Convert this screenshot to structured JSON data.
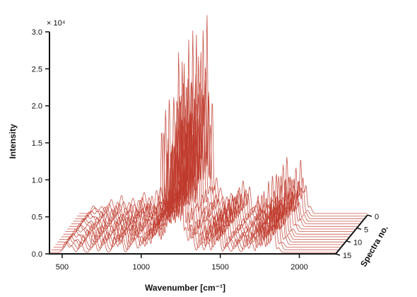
{
  "chart_data": {
    "type": "line",
    "title": "",
    "xlabel": "Wavenumber [cm⁻¹]",
    "ylabel": "Intensity",
    "zlabel": "Spectra no.",
    "y_multiplier_label": "× 10⁴",
    "xlim": [
      420,
      2230
    ],
    "ylim": [
      0,
      3.0
    ],
    "zlim": [
      0,
      15
    ],
    "x_ticks": [
      500,
      1000,
      1500,
      2000
    ],
    "x_tick_labels": [
      "500",
      "1000",
      "1500",
      "2000"
    ],
    "y_ticks": [
      0.0,
      0.5,
      1.0,
      1.5,
      2.0,
      2.5,
      3.0
    ],
    "y_tick_labels": [
      "0.0",
      "0.5",
      "1.0",
      "1.5",
      "2.0",
      "2.5",
      "3.0"
    ],
    "z_ticks": [
      0,
      5,
      10,
      15
    ],
    "z_tick_labels": [
      "0",
      "5",
      "10",
      "15"
    ],
    "series_count": 16,
    "spectrum_peaks": [
      {
        "x": 520,
        "height": 0.14,
        "width": 14
      },
      {
        "x": 560,
        "height": 0.1,
        "width": 12
      },
      {
        "x": 620,
        "height": 0.2,
        "width": 12
      },
      {
        "x": 700,
        "height": 0.28,
        "width": 12
      },
      {
        "x": 760,
        "height": 0.22,
        "width": 12
      },
      {
        "x": 830,
        "height": 0.3,
        "width": 12
      },
      {
        "x": 870,
        "height": 0.25,
        "width": 10
      },
      {
        "x": 930,
        "height": 0.38,
        "width": 10
      },
      {
        "x": 960,
        "height": 0.26,
        "width": 10
      },
      {
        "x": 1005,
        "height": 0.22,
        "width": 12
      },
      {
        "x": 1045,
        "height": 0.45,
        "width": 9
      },
      {
        "x": 1078,
        "height": 0.58,
        "width": 9
      },
      {
        "x": 1100,
        "height": 0.48,
        "width": 8
      },
      {
        "x": 1128,
        "height": 1.95,
        "width": 6
      },
      {
        "x": 1150,
        "height": 1.3,
        "width": 6
      },
      {
        "x": 1172,
        "height": 1.55,
        "width": 6
      },
      {
        "x": 1196,
        "height": 1.7,
        "width": 6
      },
      {
        "x": 1215,
        "height": 2.05,
        "width": 6
      },
      {
        "x": 1235,
        "height": 2.75,
        "width": 5
      },
      {
        "x": 1255,
        "height": 1.65,
        "width": 6
      },
      {
        "x": 1280,
        "height": 0.5,
        "width": 10
      },
      {
        "x": 1320,
        "height": 0.38,
        "width": 12
      },
      {
        "x": 1375,
        "height": 0.3,
        "width": 10
      },
      {
        "x": 1420,
        "height": 0.32,
        "width": 10
      },
      {
        "x": 1462,
        "height": 0.48,
        "width": 8
      },
      {
        "x": 1490,
        "height": 0.4,
        "width": 8
      },
      {
        "x": 1540,
        "height": 0.18,
        "width": 12
      },
      {
        "x": 1600,
        "height": 0.18,
        "width": 12
      },
      {
        "x": 1662,
        "height": 0.26,
        "width": 10
      },
      {
        "x": 1700,
        "height": 0.22,
        "width": 10
      },
      {
        "x": 1738,
        "height": 0.8,
        "width": 6
      },
      {
        "x": 1768,
        "height": 0.42,
        "width": 8
      },
      {
        "x": 1800,
        "height": 0.45,
        "width": 7
      },
      {
        "x": 1822,
        "height": 0.75,
        "width": 6
      },
      {
        "x": 1842,
        "height": 0.42,
        "width": 7
      },
      {
        "x": 1870,
        "height": 0.1,
        "width": 10
      }
    ],
    "grid": false,
    "legend": "none"
  },
  "colors": {
    "line": "#c0392b",
    "axis": "#111111"
  }
}
